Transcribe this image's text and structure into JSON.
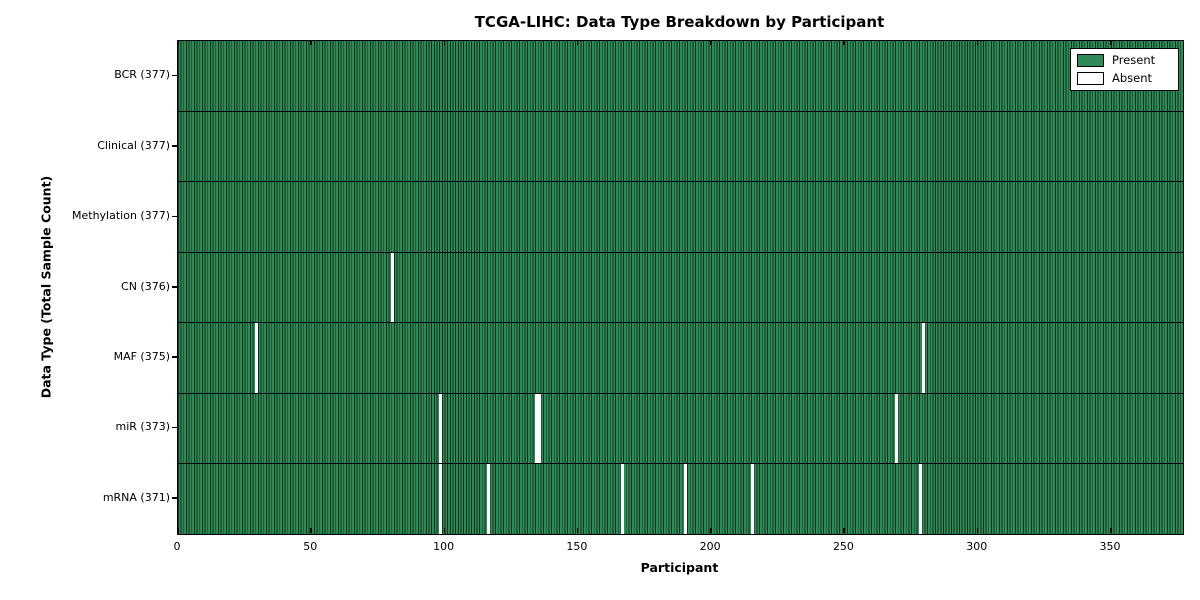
{
  "title": "TCGA-LIHC: Data Type Breakdown by Participant",
  "chart_data": {
    "type": "heatmap",
    "title": "TCGA-LIHC: Data Type Breakdown by Participant",
    "xlabel": "Participant",
    "ylabel": "Data Type (Total Sample Count)",
    "x_ticks": [
      0,
      50,
      100,
      150,
      200,
      250,
      300,
      350
    ],
    "x_range": [
      0,
      377
    ],
    "n_participants": 377,
    "grid": false,
    "legend": {
      "position": "upper right",
      "entries": [
        {
          "label": "Present",
          "color": "#2e8b57"
        },
        {
          "label": "Absent",
          "color": "#ffffff"
        }
      ]
    },
    "rows": [
      {
        "label": "BCR",
        "total": 377,
        "tick_label": "BCR (377)",
        "absent_participants": []
      },
      {
        "label": "Clinical",
        "total": 377,
        "tick_label": "Clinical (377)",
        "absent_participants": []
      },
      {
        "label": "Methylation",
        "total": 377,
        "tick_label": "Methylation (377)",
        "absent_participants": []
      },
      {
        "label": "CN",
        "total": 376,
        "tick_label": "CN (376)",
        "absent_participants": [
          80
        ]
      },
      {
        "label": "MAF",
        "total": 375,
        "tick_label": "MAF (375)",
        "absent_participants": [
          29,
          279
        ]
      },
      {
        "label": "miR",
        "total": 373,
        "tick_label": "miR (373)",
        "absent_participants": [
          98,
          134,
          135,
          269
        ]
      },
      {
        "label": "mRNA",
        "total": 371,
        "tick_label": "mRNA (371)",
        "absent_participants": [
          98,
          116,
          166,
          190,
          215,
          278
        ]
      }
    ],
    "colors": {
      "present": "#2e8b57",
      "bar_edge": "#11301e",
      "absent": "#ffffff",
      "axis": "#000000",
      "background": "#ffffff"
    }
  }
}
